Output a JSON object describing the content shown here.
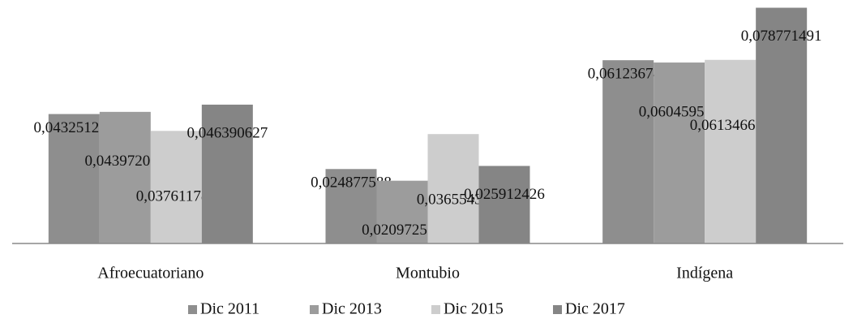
{
  "chart_data": {
    "type": "bar",
    "categories": [
      "Afroecuatoriano",
      "Montubio",
      "Indígena"
    ],
    "series": [
      {
        "name": "Dic 2011",
        "color": "#8e8e8e",
        "values": [
          0.043251281,
          0.024877588,
          0.061236742
        ],
        "value_labels": [
          "0,043251281",
          "0,024877588",
          "0,061236742"
        ]
      },
      {
        "name": "Dic 2013",
        "color": "#9c9c9c",
        "values": [
          0.043972003,
          0.020972585,
          0.060459515
        ],
        "value_labels": [
          "0,043972003",
          "0,020972585",
          "0,060459515"
        ]
      },
      {
        "name": "Dic 2015",
        "color": "#cdcdcd",
        "values": [
          0.037611788,
          0.03655436,
          0.061346677
        ],
        "value_labels": [
          "0,037611788",
          "0,03655436",
          "0,061346677"
        ]
      },
      {
        "name": "Dic 2017",
        "color": "#858585",
        "values": [
          0.046390627,
          0.025912426,
          0.078771491
        ],
        "value_labels": [
          "0,046390627",
          "0,025912426",
          "0,078771491"
        ]
      }
    ],
    "ylim": [
      0,
      0.08
    ],
    "legend": "bottom"
  }
}
